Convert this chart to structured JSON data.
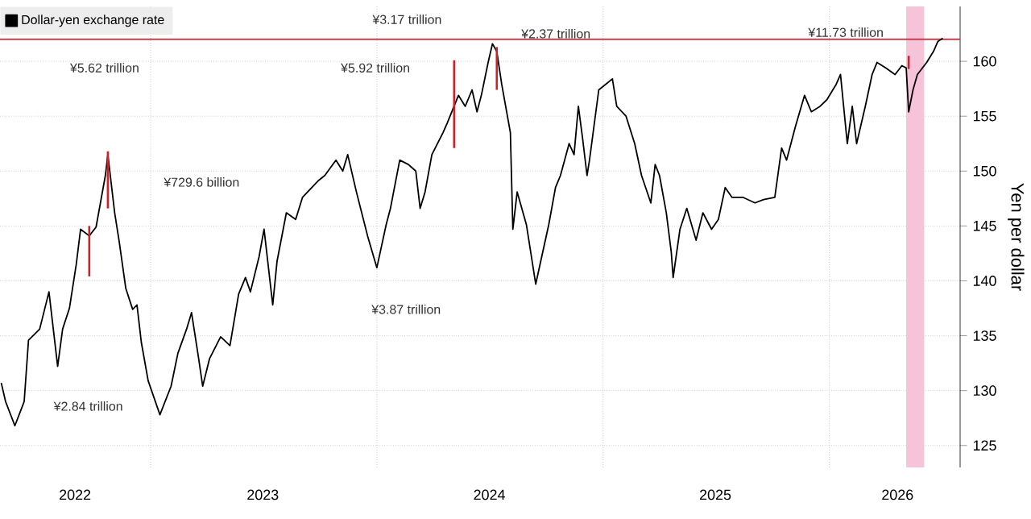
{
  "chart_data": {
    "type": "line",
    "ylabel": "Yen per dollar",
    "xlim": [
      "2022-05-03",
      "2026-07-31"
    ],
    "ylim": [
      123,
      165
    ],
    "xticks": [
      {
        "value": "2022-09-01",
        "label": "2022"
      },
      {
        "value": "2023-01-01",
        "label": null
      },
      {
        "value": "2023-07-01",
        "label": "2023"
      },
      {
        "value": "2024-01-01",
        "label": null
      },
      {
        "value": "2024-07-01",
        "label": "2024"
      },
      {
        "value": "2025-01-01",
        "label": null
      },
      {
        "value": "2025-07-01",
        "label": "2025"
      },
      {
        "value": "2026-01-01",
        "label": null
      },
      {
        "value": "2026-04-21",
        "label": "2026"
      }
    ],
    "yticks": [
      125,
      130,
      135,
      140,
      145,
      150,
      155,
      160
    ],
    "grid": true,
    "legend": "top left",
    "series": [
      {
        "name": "Dollar-yen exchange rate",
        "color": "#000000",
        "x": [
          "2022-05-05",
          "2022-05-12",
          "2022-05-27",
          "2022-06-11",
          "2022-06-18",
          "2022-07-06",
          "2022-07-21",
          "2022-08-04",
          "2022-08-12",
          "2022-08-23",
          "2022-09-03",
          "2022-09-10",
          "2022-09-24",
          "2022-10-05",
          "2022-10-20",
          "2022-10-24",
          "2022-11-04",
          "2022-11-11",
          "2022-11-22",
          "2022-12-03",
          "2022-12-10",
          "2022-12-17",
          "2022-12-28",
          "2023-01-16",
          "2023-02-03",
          "2023-02-14",
          "2023-02-28",
          "2023-03-08",
          "2023-03-19",
          "2023-03-26",
          "2023-04-06",
          "2023-04-24",
          "2023-05-09",
          "2023-05-23",
          "2023-06-03",
          "2023-06-11",
          "2023-06-25",
          "2023-07-03",
          "2023-07-17",
          "2023-07-24",
          "2023-08-08",
          "2023-08-23",
          "2023-09-03",
          "2023-09-28",
          "2023-10-09",
          "2023-10-27",
          "2023-11-07",
          "2023-11-15",
          "2023-11-29",
          "2023-12-17",
          "2024-01-01",
          "2024-01-16",
          "2024-01-23",
          "2024-02-07",
          "2024-02-21",
          "2024-03-04",
          "2024-03-11",
          "2024-03-19",
          "2024-03-30",
          "2024-04-17",
          "2024-04-24",
          "2024-05-12",
          "2024-05-23",
          "2024-06-03",
          "2024-06-11",
          "2024-06-18",
          "2024-06-29",
          "2024-07-06",
          "2024-07-13",
          "2024-07-21",
          "2024-08-04",
          "2024-08-08",
          "2024-08-15",
          "2024-08-30",
          "2024-09-14",
          "2024-10-05",
          "2024-10-16",
          "2024-10-24",
          "2024-11-07",
          "2024-11-15",
          "2024-11-22",
          "2024-11-29",
          "2024-12-06",
          "2024-12-10",
          "2024-12-25",
          "2025-01-05",
          "2025-01-16",
          "2025-01-23",
          "2025-02-07",
          "2025-02-21",
          "2025-03-04",
          "2025-03-19",
          "2025-03-26",
          "2025-04-02",
          "2025-04-13",
          "2025-04-21",
          "2025-04-24",
          "2025-05-05",
          "2025-05-16",
          "2025-05-31",
          "2025-06-11",
          "2025-06-25",
          "2025-07-06",
          "2025-07-17",
          "2025-07-28",
          "2025-08-15",
          "2025-09-03",
          "2025-09-17",
          "2025-10-05",
          "2025-10-16",
          "2025-10-24",
          "2025-11-07",
          "2025-11-22",
          "2025-12-03",
          "2025-12-17",
          "2025-12-28",
          "2026-01-12",
          "2026-01-19",
          "2026-01-23",
          "2026-01-30",
          "2026-02-07",
          "2026-02-14",
          "2026-02-28",
          "2026-03-11",
          "2026-03-19",
          "2026-04-02",
          "2026-04-17",
          "2026-04-28",
          "2026-05-05",
          "2026-05-09",
          "2026-05-16",
          "2026-05-23",
          "2026-06-07",
          "2026-06-18",
          "2026-06-25",
          "2026-07-03"
        ],
        "values": [
          130.7,
          129.0,
          126.8,
          129.0,
          134.6,
          135.6,
          139.0,
          132.2,
          135.6,
          137.5,
          141.5,
          144.7,
          144.1,
          144.9,
          149.6,
          151.5,
          146.2,
          143.7,
          139.3,
          137.4,
          137.8,
          134.4,
          130.9,
          127.8,
          130.4,
          133.4,
          135.6,
          137.1,
          133.1,
          130.4,
          132.9,
          134.9,
          134.1,
          138.8,
          140.3,
          139.0,
          142.2,
          144.7,
          137.8,
          141.8,
          146.2,
          145.6,
          147.6,
          149.1,
          149.6,
          151.0,
          150.0,
          151.5,
          148.1,
          144.1,
          141.2,
          145.1,
          146.6,
          151.0,
          150.6,
          150.0,
          146.6,
          148.1,
          151.5,
          153.5,
          154.4,
          156.9,
          155.9,
          157.4,
          155.4,
          156.9,
          159.9,
          161.6,
          160.9,
          157.9,
          153.5,
          144.7,
          148.1,
          145.1,
          139.7,
          145.1,
          148.5,
          149.6,
          152.5,
          151.5,
          155.9,
          152.9,
          149.6,
          151.0,
          157.4,
          157.9,
          158.4,
          155.9,
          155.0,
          152.5,
          149.6,
          147.1,
          150.6,
          149.6,
          146.2,
          142.6,
          140.3,
          144.7,
          146.6,
          143.7,
          146.2,
          144.7,
          145.6,
          148.5,
          147.6,
          147.6,
          147.1,
          147.4,
          147.6,
          152.1,
          151.0,
          154.0,
          156.9,
          155.4,
          155.9,
          156.5,
          157.9,
          158.8,
          156.5,
          152.5,
          155.9,
          152.5,
          155.9,
          158.8,
          159.9,
          159.4,
          158.8,
          159.6,
          159.4,
          155.4,
          157.4,
          158.8,
          159.9,
          160.9,
          161.8,
          162.1
        ]
      },
      {
        "color": "#d0202a",
        "x": [
          "2022-09-24",
          "2022-09-24"
        ],
        "values": [
          145.0,
          140.4
        ]
      },
      {
        "color": "#d0202a",
        "x": [
          "2022-10-24",
          "2022-10-24"
        ],
        "values": [
          151.8,
          146.6
        ]
      },
      {
        "color": "#d0202a",
        "x": [
          "2024-05-05",
          "2024-05-05"
        ],
        "values": [
          160.1,
          152.1
        ]
      },
      {
        "color": "#d0202a",
        "x": [
          "2024-07-13",
          "2024-07-13"
        ],
        "values": [
          161.3,
          157.4
        ]
      },
      {
        "color": "#d0202a",
        "x": [
          "2026-05-09",
          "2026-05-09"
        ],
        "values": [
          160.5,
          159.3
        ]
      }
    ],
    "ref_lines": [
      {
        "axis": "y",
        "value": 162,
        "color": "#c0404e"
      }
    ],
    "bands": [
      {
        "axis": "x",
        "from": "2026-05-05",
        "to": "2026-06-03",
        "color": "#f6c3d8"
      }
    ],
    "annotations": [
      "¥5.62 trillion",
      "¥729.6 billion",
      "¥2.84 trillion",
      "¥3.17 trillion",
      "¥5.92 trillion",
      "¥2.37 trillion",
      "¥3.87 trillion",
      "¥11.73 trillion"
    ]
  }
}
